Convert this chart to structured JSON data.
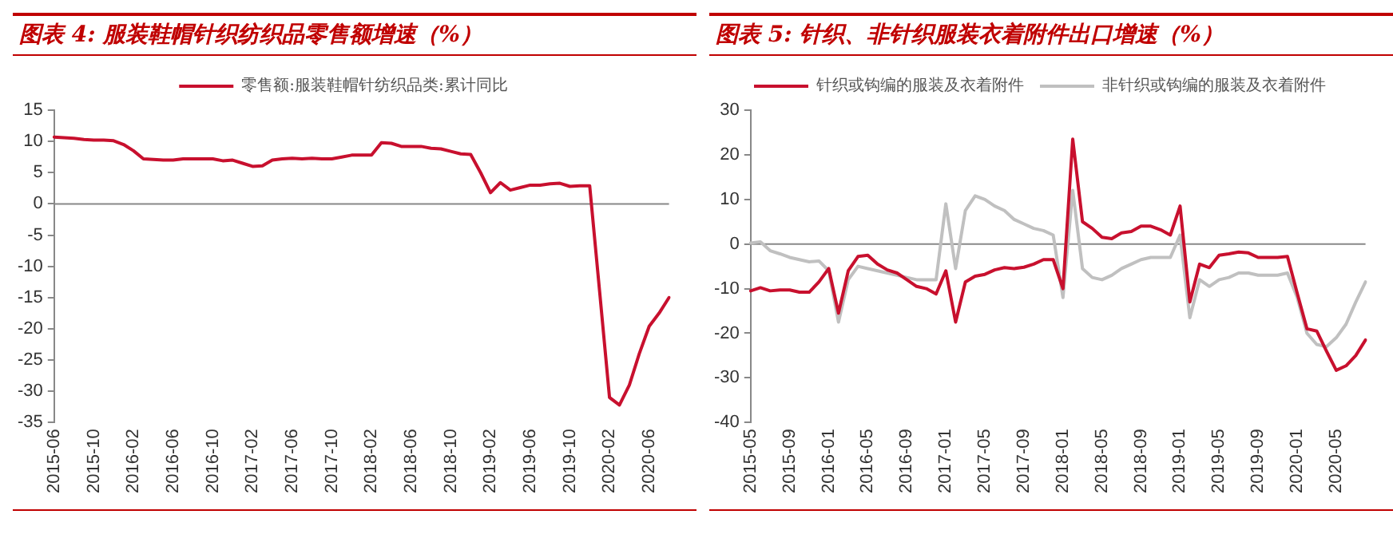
{
  "chart_data": [
    {
      "type": "line",
      "title": "图表 4: 服装鞋帽针织纺织品零售额增速（%）",
      "categories": [
        "2015-06",
        null,
        null,
        null,
        "2015-10",
        null,
        null,
        null,
        "2016-02",
        null,
        null,
        null,
        "2016-06",
        null,
        null,
        null,
        "2016-10",
        null,
        null,
        null,
        "2017-02",
        null,
        null,
        null,
        "2017-06",
        null,
        null,
        null,
        "2017-10",
        null,
        null,
        null,
        "2018-02",
        null,
        null,
        null,
        "2018-06",
        null,
        null,
        null,
        "2018-10",
        null,
        null,
        null,
        "2019-02",
        null,
        null,
        null,
        "2019-06",
        null,
        null,
        null,
        "2019-10",
        null,
        null,
        null,
        "2020-02",
        null,
        null,
        null,
        "2020-06",
        null,
        null
      ],
      "series": [
        {
          "name": "零售额:服装鞋帽针纺织品类:累计同比",
          "color": "#c8102e",
          "values": [
            10.7,
            10.6,
            10.5,
            10.3,
            10.2,
            10.2,
            10.1,
            9.5,
            8.5,
            7.2,
            7.1,
            7.0,
            7.0,
            7.2,
            7.2,
            7.2,
            7.2,
            6.9,
            7.0,
            6.5,
            6.0,
            6.1,
            7.0,
            7.2,
            7.3,
            7.2,
            7.3,
            7.2,
            7.2,
            7.5,
            7.8,
            7.8,
            7.8,
            9.8,
            9.7,
            9.2,
            9.2,
            9.2,
            8.9,
            8.8,
            8.4,
            8.0,
            7.9,
            5.0,
            1.8,
            3.4,
            2.2,
            2.6,
            3.0,
            3.0,
            3.2,
            3.3,
            2.8,
            2.9,
            2.9,
            -14,
            -31,
            -32.2,
            -29,
            -24,
            -19.6,
            -17.5,
            -15
          ]
        }
      ],
      "ylim": [
        -35,
        15
      ],
      "yticks": [
        15,
        10,
        5,
        0,
        -5,
        -10,
        -15,
        -20,
        -25,
        -30,
        -35
      ],
      "ref_lines": [
        {
          "axis": "y",
          "value": 0,
          "color": "#888888"
        }
      ],
      "grid": false,
      "legend": "top",
      "marker": "none",
      "line_style": "solid"
    },
    {
      "type": "line",
      "title": "图表 5: 针织、非针织服装衣着附件出口增速（%）",
      "categories": [
        "2015-05",
        null,
        null,
        null,
        "2015-09",
        null,
        null,
        null,
        "2016-01",
        null,
        null,
        null,
        "2016-05",
        null,
        null,
        null,
        "2016-09",
        null,
        null,
        null,
        "2017-01",
        null,
        null,
        null,
        "2017-05",
        null,
        null,
        null,
        "2017-09",
        null,
        null,
        null,
        "2018-01",
        null,
        null,
        null,
        "2018-05",
        null,
        null,
        null,
        "2018-09",
        null,
        null,
        null,
        "2019-01",
        null,
        null,
        null,
        "2019-05",
        null,
        null,
        null,
        "2019-09",
        null,
        null,
        null,
        "2020-01",
        null,
        null,
        null,
        "2020-05",
        null,
        null,
        null
      ],
      "series": [
        {
          "name": "针织或钩编的服装及衣着附件",
          "color": "#c8102e",
          "values": [
            -10.5,
            -9.8,
            -10.5,
            -10.3,
            -10.3,
            -10.8,
            -10.8,
            -8.5,
            -5.5,
            -15.5,
            -6,
            -2.8,
            -2.5,
            -4.5,
            -5.8,
            -6.5,
            -8,
            -9.5,
            -10,
            -11.2,
            -6,
            -17.5,
            -8.5,
            -7.2,
            -6.8,
            -5.8,
            -5.3,
            -5.5,
            -5.2,
            -4.5,
            -3.5,
            -3.5,
            -10,
            23.5,
            5,
            3.5,
            1.5,
            1.2,
            2.5,
            2.8,
            4,
            4,
            3.2,
            2,
            8.5,
            -13,
            -4.5,
            -5.3,
            -2.5,
            -2.2,
            -1.8,
            -2,
            -3,
            -3,
            -3,
            -2.8,
            -11,
            -19,
            -19.5,
            -24,
            -28.3,
            -27.3,
            -25,
            -21.5
          ]
        },
        {
          "name": "非针织或钩编的服装及衣着附件",
          "color": "#c0c0c0",
          "values": [
            0.2,
            0.5,
            -1.5,
            -2.2,
            -3,
            -3.5,
            -4,
            -3.8,
            -6,
            -17.5,
            -8,
            -5,
            -5.5,
            -6,
            -6.5,
            -7,
            -7.5,
            -8,
            -8,
            -8,
            9,
            -5.5,
            7.5,
            10.8,
            10,
            8.5,
            7.5,
            5.5,
            4.5,
            3.5,
            3,
            2,
            -12,
            12,
            -5.5,
            -7.5,
            -8,
            -7,
            -5.5,
            -4.5,
            -3.5,
            -3,
            -3,
            -3,
            2,
            -16.5,
            -8,
            -9.5,
            -8,
            -7.5,
            -6.5,
            -6.5,
            -7,
            -7,
            -7,
            -6.5,
            -12,
            -20,
            -22.5,
            -23,
            -21,
            -18,
            -13,
            -8.5
          ]
        }
      ],
      "ylim": [
        -40,
        30
      ],
      "yticks": [
        30,
        20,
        10,
        0,
        -10,
        -20,
        -30,
        -40
      ],
      "ref_lines": [
        {
          "axis": "y",
          "value": 0,
          "color": "#888888"
        }
      ],
      "grid": false,
      "legend": "top",
      "marker": "none",
      "line_style": "solid"
    }
  ]
}
